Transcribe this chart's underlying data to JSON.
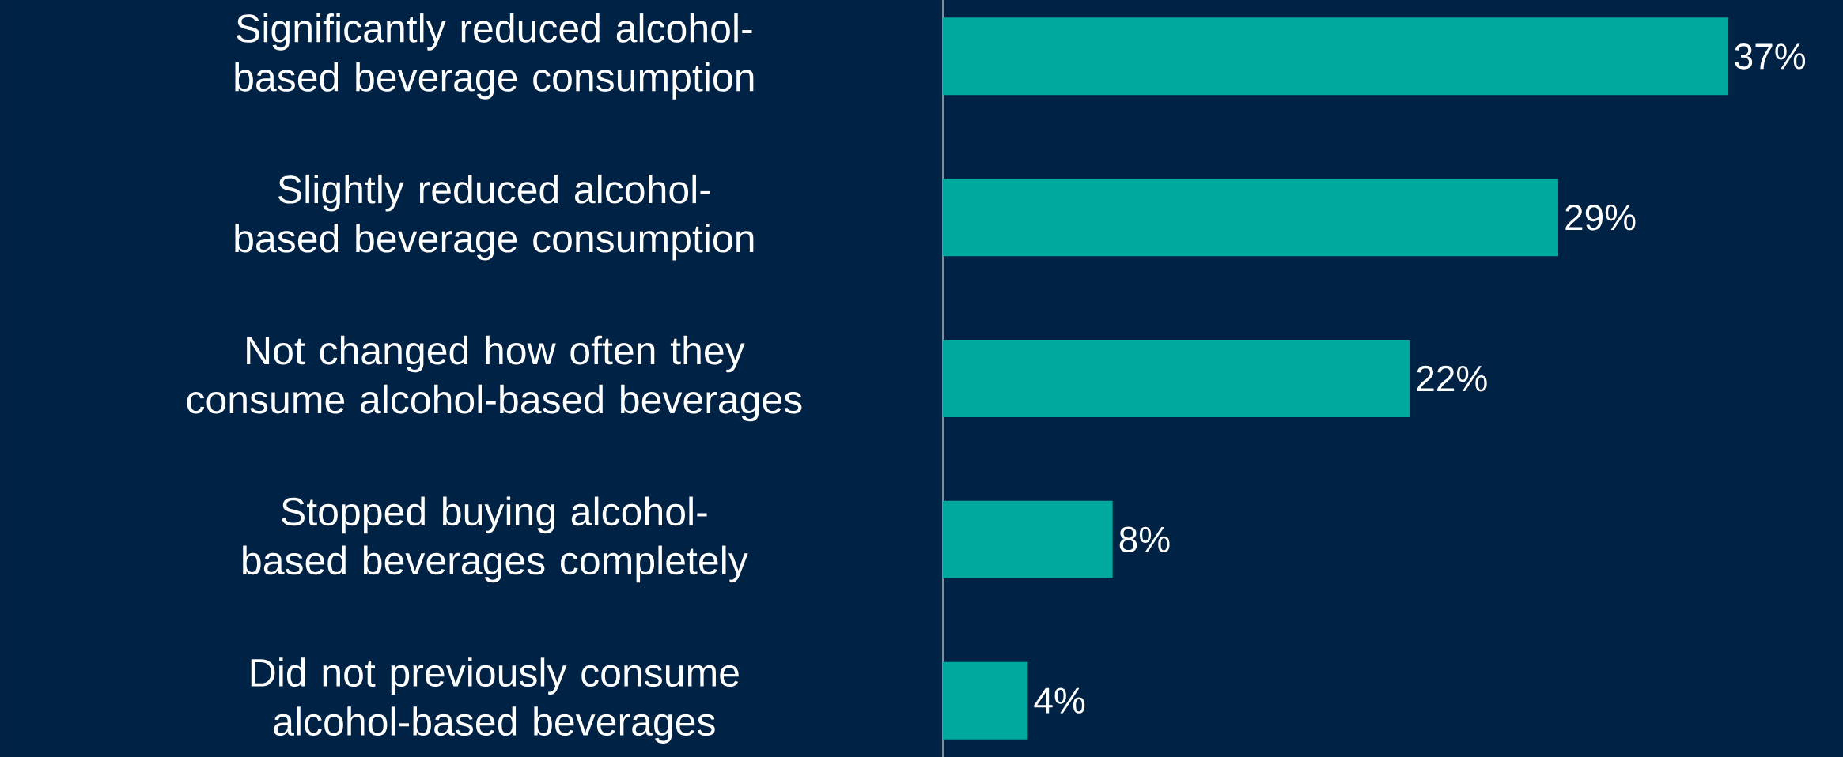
{
  "chart_data": {
    "type": "bar",
    "orientation": "horizontal",
    "categories": [
      "Significantly reduced alcohol-based beverage consumption",
      "Slightly reduced alcohol-based beverage consumption",
      "Not changed how often they consume alcohol-based beverages",
      "Stopped buying alcohol-based beverages completely",
      "Did not previously consume alcohol-based beverages"
    ],
    "values": [
      37,
      29,
      22,
      8,
      4
    ],
    "value_labels": [
      "37%",
      "29%",
      "22%",
      "8%",
      "4%"
    ],
    "color": "#00a99d",
    "grid": false
  }
}
